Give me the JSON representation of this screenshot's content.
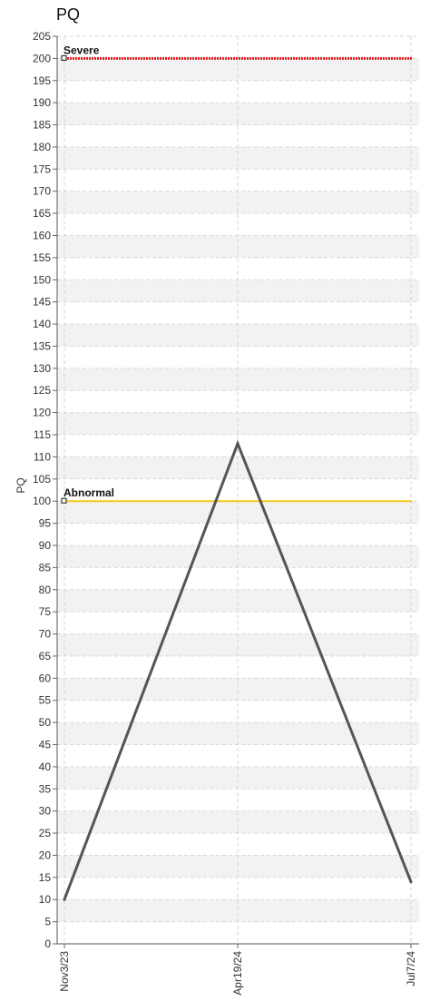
{
  "chart_data": {
    "type": "line",
    "title": "PQ",
    "ylabel": "PQ",
    "xlabel": "",
    "ylim": [
      0,
      205
    ],
    "y_tick_step": 5,
    "grid": true,
    "categories": [
      "Nov3/23",
      "Apr19/24",
      "Jul7/24"
    ],
    "series": [
      {
        "values": [
          10,
          113,
          14
        ],
        "color": "#555555"
      }
    ],
    "reference_lines": [
      {
        "label": "Severe",
        "value": 200,
        "color": "#e02020",
        "style": "dotted"
      },
      {
        "label": "Abnormal",
        "value": 100,
        "color": "#f2c81e",
        "style": "solid"
      }
    ]
  }
}
